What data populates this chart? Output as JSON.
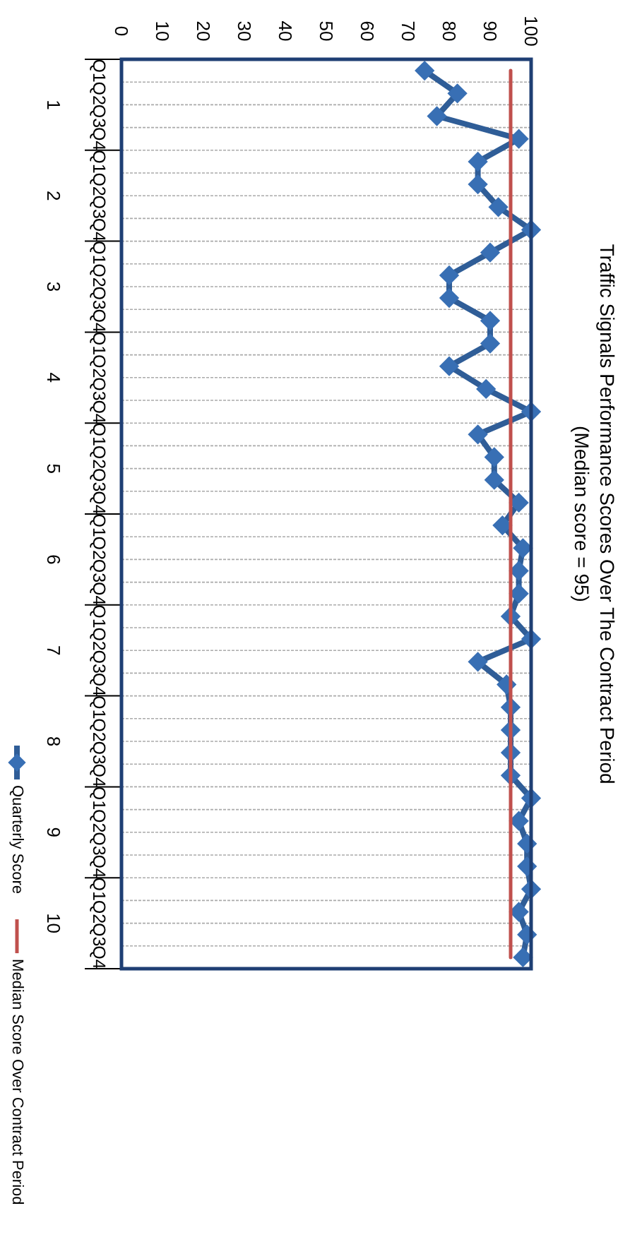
{
  "chart_data": {
    "type": "line",
    "title": "Traffic Signals Performance Scores Over The Contract Period",
    "subtitle": "(Median score = 95)",
    "categories": [
      "Q1",
      "Q2",
      "Q3",
      "Q4",
      "Q1",
      "Q2",
      "Q3",
      "Q4",
      "Q1",
      "Q2",
      "Q3",
      "Q4",
      "Q1",
      "Q2",
      "Q3",
      "Q4",
      "Q1",
      "Q2",
      "Q3",
      "Q4",
      "Q1",
      "Q2",
      "Q3",
      "Q4",
      "Q1",
      "Q2",
      "Q3",
      "Q4",
      "Q1",
      "Q2",
      "Q3",
      "Q4",
      "Q1",
      "Q2",
      "Q3",
      "Q4",
      "Q1",
      "Q2",
      "Q3",
      "Q4"
    ],
    "annotations": [
      "1",
      "2",
      "3",
      "4",
      "5",
      "6",
      "7",
      "8",
      "9",
      "10"
    ],
    "series": [
      {
        "name": "Quarterly Score",
        "color": "#2f5d97",
        "marker": "diamond",
        "values": [
          74,
          82,
          77,
          97,
          87,
          87,
          92,
          100,
          90,
          80,
          80,
          90,
          90,
          80,
          89,
          100,
          87,
          91,
          91,
          97,
          93,
          98,
          97,
          97,
          95,
          100,
          87,
          94,
          95,
          95,
          95,
          95,
          100,
          97,
          99,
          99,
          100,
          97,
          99,
          98
        ]
      },
      {
        "name": "Median Score Over Contract Period",
        "color": "#c0504d",
        "marker": "none",
        "values": [
          95,
          95,
          95,
          95,
          95,
          95,
          95,
          95,
          95,
          95,
          95,
          95,
          95,
          95,
          95,
          95,
          95,
          95,
          95,
          95,
          95,
          95,
          95,
          95,
          95,
          95,
          95,
          95,
          95,
          95,
          95,
          95,
          95,
          95,
          95,
          95,
          95,
          95,
          95,
          95
        ]
      }
    ],
    "orientation": "horizontal",
    "xlim": [
      0,
      100
    ],
    "xticks": [
      0,
      10,
      20,
      30,
      40,
      50,
      60,
      70,
      80,
      90,
      100
    ],
    "grid": "y",
    "legend": "bottom"
  }
}
